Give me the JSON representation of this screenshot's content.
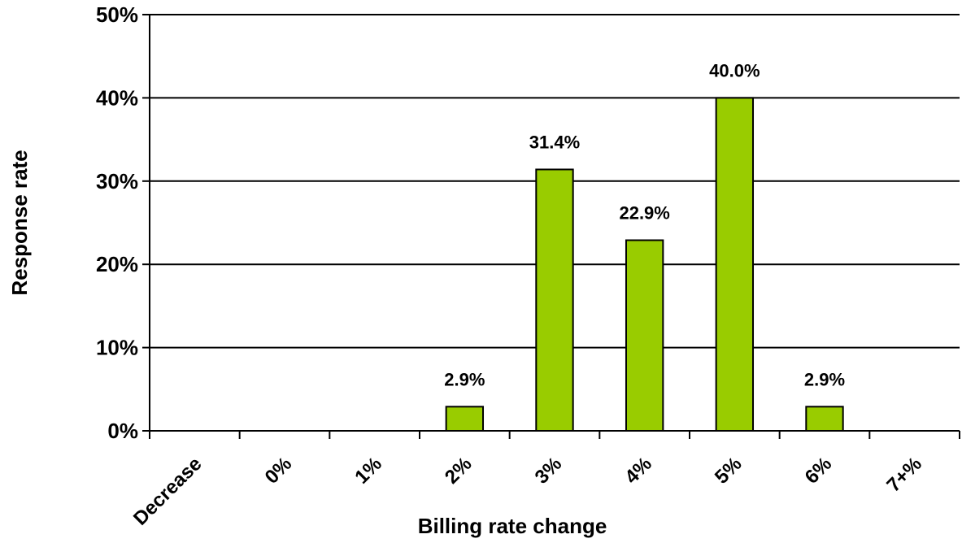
{
  "chart_data": {
    "type": "bar",
    "title": "",
    "xlabel": "Billing rate change",
    "ylabel": "Response rate",
    "categories": [
      "Decrease",
      "0%",
      "1%",
      "2%",
      "3%",
      "4%",
      "5%",
      "6%",
      "7+%"
    ],
    "values": [
      0,
      0,
      0,
      2.9,
      31.4,
      22.9,
      40.0,
      2.9,
      0
    ],
    "data_labels": [
      "",
      "",
      "",
      "2.9%",
      "31.4%",
      "22.9%",
      "40.0%",
      "2.9%",
      ""
    ],
    "ylim": [
      0,
      50
    ],
    "yticks": [
      0,
      10,
      20,
      30,
      40,
      50
    ],
    "ytick_labels": [
      "0%",
      "10%",
      "20%",
      "30%",
      "40%",
      "50%"
    ],
    "grid": true,
    "legend": "none",
    "bar_color": "#99cc00",
    "bar_edge_color": "#000000"
  }
}
